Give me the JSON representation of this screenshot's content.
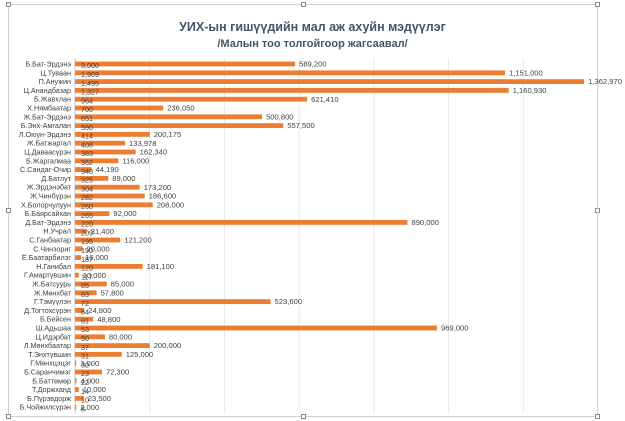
{
  "chart_data": {
    "type": "bar",
    "orientation": "horizontal",
    "title": "УИХ-ын гишүүдийн мал аж ахуйн мэдүүлэг",
    "subtitle": "/Малын тоо толгойгоор жагсаавал/",
    "xlabel": "",
    "ylabel": "",
    "xlim": [
      0,
      1400000
    ],
    "grid": true,
    "bar_color": "#ed7d31",
    "categories": [
      "Б.Бат-Эрдэнэ",
      "Ц.Туваан",
      "П.Анужин",
      "Ц.Анандбазар",
      "Б.Жавхлан",
      "Х.Нямбаатар",
      "Ж.Бат-Эрдэнэ",
      "Б.Энх-Амгалан",
      "Л.Оюун-Эрдэнэ",
      "Ж.Батжаргал",
      "Ц.Даваасүрэн",
      "Б.Жаргалмаа",
      "С.Сандаг-Очир",
      "Д.Батлут",
      "Ж.Эрдэнэбат",
      "Ж.Чинбүрэн",
      "Х.Болорчулуун",
      "Б.Баярсайхан",
      "Д.Бат-Эрдэнэ",
      "Н.Учрал",
      "С.Ганбаатар",
      "С.Чинзориг",
      "Ё.Баатарбилэг",
      "Н.Ганибал",
      "Г.Амартүвшин",
      "Ж.Батсуурь",
      "Ж.Мөнхбат",
      "Г.Тэмүүлэн",
      "Д.Тогтохсүрэн",
      "Б.Бейсен",
      "Ш.Адьшаа",
      "Ц.Идэрбат",
      "Л.Мөнхбаатар",
      "Т.Энхтүвшин",
      "Г.Мөнхцэцэг",
      "Б.Саранчимэг",
      "Б.Баттөмөр",
      "Т.Доржханд",
      "Б.Пүрэвдорж",
      "Б.Чойжилсүрэн"
    ],
    "values": [
      589200,
      1151000,
      1362970,
      1160930,
      621410,
      236050,
      500800,
      557500,
      200175,
      133978,
      162340,
      116000,
      44190,
      89000,
      173200,
      186600,
      208000,
      92000,
      890000,
      31400,
      121200,
      20000,
      16000,
      181100,
      10000,
      85000,
      57800,
      523600,
      24800,
      48800,
      969000,
      80000,
      200000,
      125000,
      3000,
      72300,
      4000,
      10000,
      23500,
      2000
    ],
    "labels": [
      "589,200",
      "1,151,000",
      "1,362,970",
      "1,160,930",
      "621,410",
      "236,050",
      "500,800",
      "557,500",
      "200,175",
      "133,978",
      "162,340",
      "116,000",
      "44,190",
      "89,000",
      "173,200",
      "186,600",
      "208,000",
      "92,000",
      "890,000",
      "31,400",
      "121,200",
      "20,000",
      "16,000",
      "181,100",
      "10,000",
      "85,000",
      "57,800",
      "523,600",
      "24,800",
      "48,800",
      "969,000",
      "80,000",
      "200,000",
      "125,000",
      "3,000",
      "72,300",
      "4,000",
      "10,000",
      "23,500",
      "2,000"
    ],
    "inner_labels": [
      "3,000",
      "1,909",
      "1,495",
      "1,327",
      "964",
      "700",
      "651",
      "590",
      "414",
      "408",
      "383",
      "362",
      "340",
      "325",
      "304",
      "282",
      "260",
      "265",
      "220",
      "209",
      "195",
      "190",
      "187",
      "120",
      "117",
      "85",
      "83",
      "72",
      "64",
      "61",
      "53",
      "50",
      "37",
      "31",
      "30",
      "23",
      "22",
      "14",
      "10",
      "8"
    ]
  }
}
